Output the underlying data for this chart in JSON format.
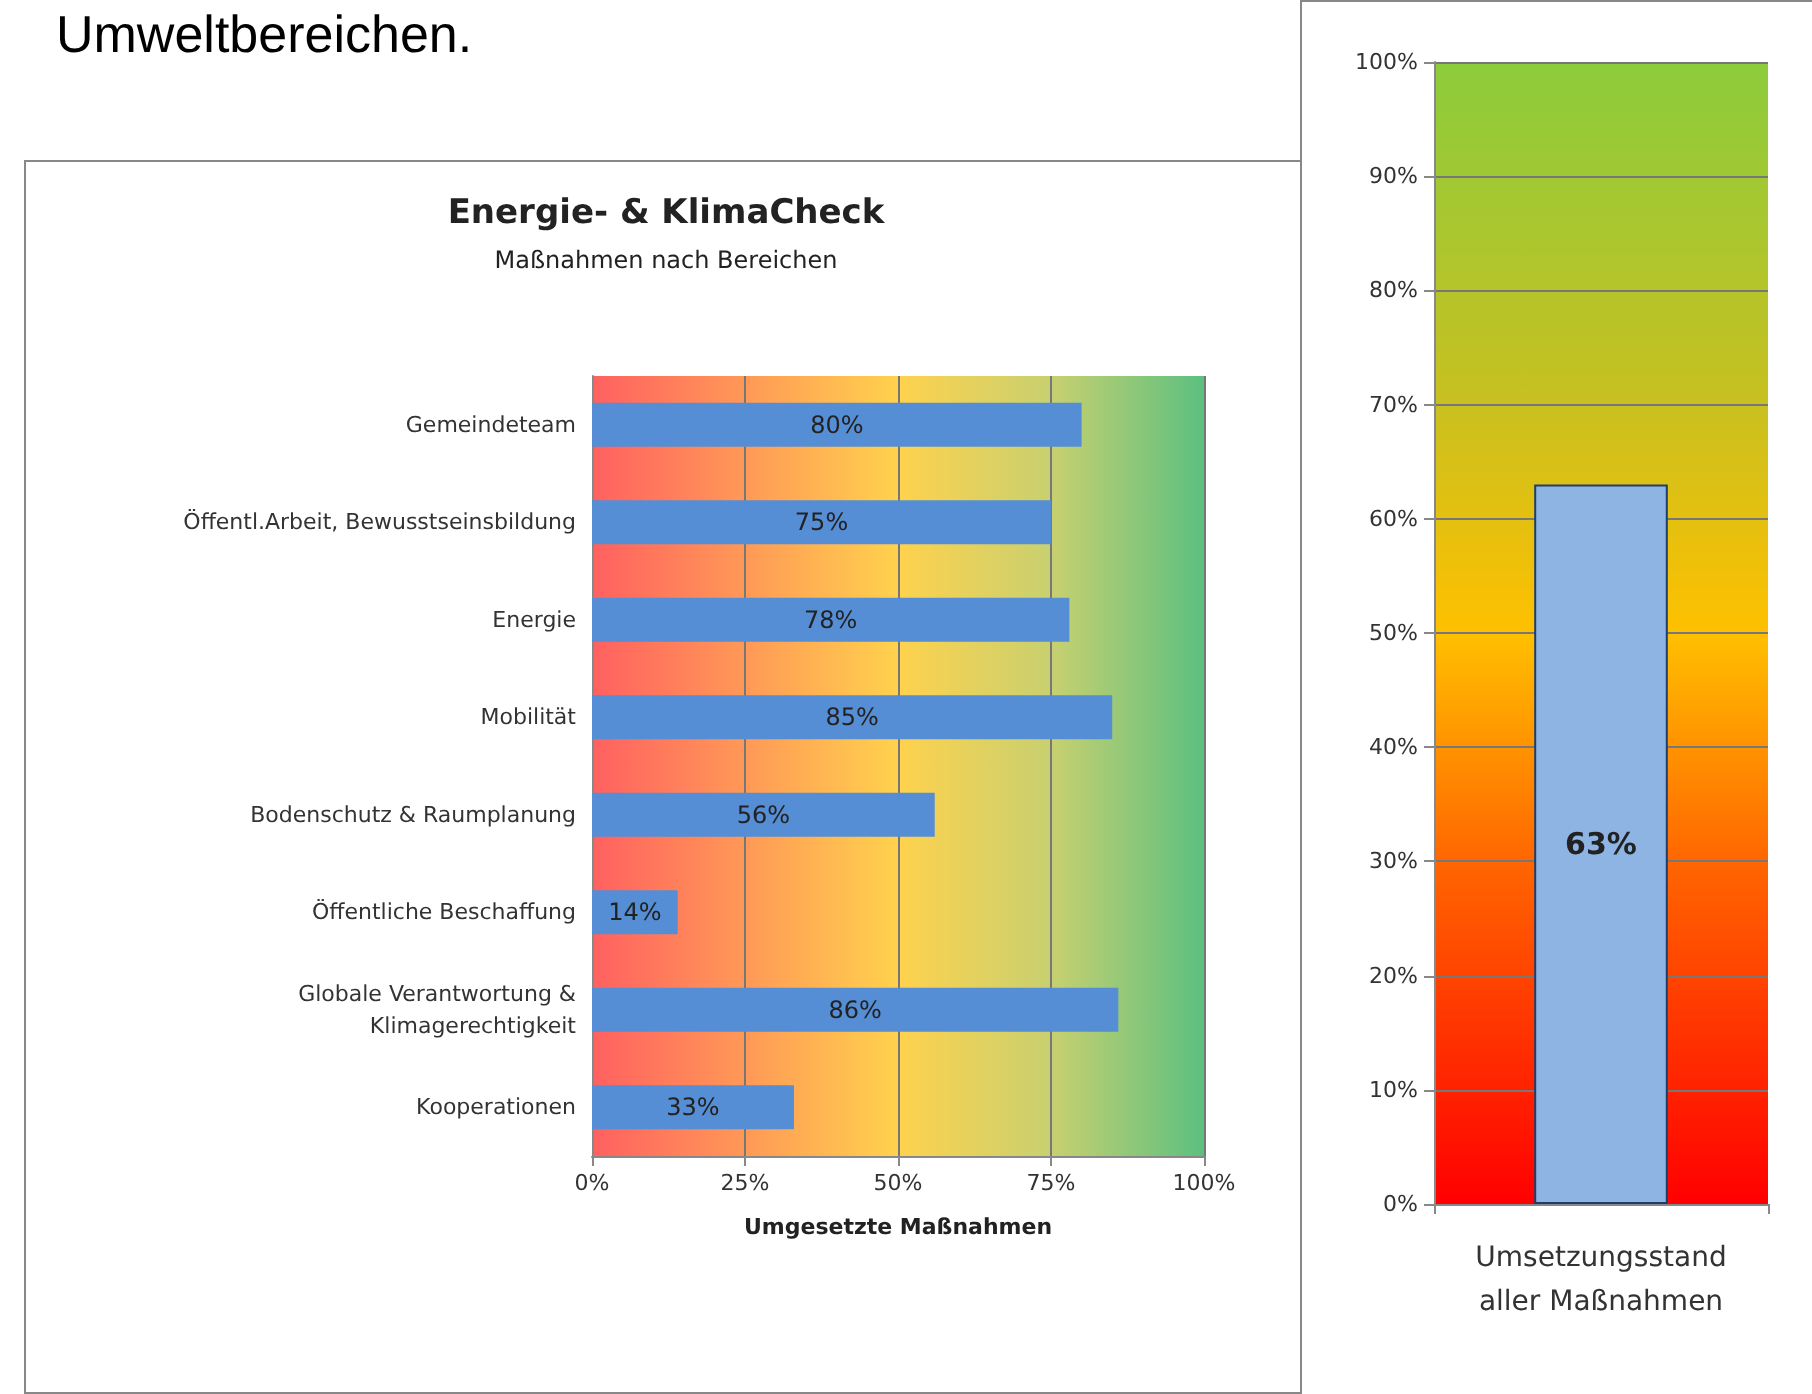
{
  "chart_data": [
    {
      "type": "bar",
      "title": "Energie- & KlimaCheck",
      "subtitle": "Maßnahmen nach Bereichen",
      "xlabel": "Umgesetzte Maßnahmen",
      "orientation": "horizontal",
      "annotations": [
        "Umweltbereichen."
      ],
      "categories": [
        "Gemeindeteam",
        "Öffentl.Arbeit, Bewusstseinsbildung",
        "Energie",
        "Mobilität",
        "Bodenschutz & Raumplanung",
        "Öffentliche Beschaffung",
        "Globale Verantwortung &\nKlimagerechtigkeit",
        "Kooperationen"
      ],
      "values": [
        80,
        75,
        78,
        85,
        56,
        14,
        86,
        33
      ],
      "value_labels": [
        "80%",
        "75%",
        "78%",
        "85%",
        "56%",
        "14%",
        "86%",
        "33%"
      ],
      "color": "#558ed5",
      "xlim": [
        0,
        100
      ],
      "xticks": [
        {
          "value": 0,
          "label": "0%"
        },
        {
          "value": 25,
          "label": "25%"
        },
        {
          "value": 50,
          "label": "50%"
        },
        {
          "value": 75,
          "label": "75%"
        },
        {
          "value": 100,
          "label": "100%"
        }
      ],
      "grid": "x"
    },
    {
      "type": "bar",
      "categories": [
        "Umsetzungsstand\naller Maßnahmen"
      ],
      "values": [
        63
      ],
      "value_labels": [
        "63%"
      ],
      "color": "#8db4e2",
      "ylim": [
        0,
        100
      ],
      "yticks": [
        {
          "value": 0,
          "label": "0%"
        },
        {
          "value": 10,
          "label": "10%"
        },
        {
          "value": 20,
          "label": "20%"
        },
        {
          "value": 30,
          "label": "30%"
        },
        {
          "value": 40,
          "label": "40%"
        },
        {
          "value": 50,
          "label": "50%"
        },
        {
          "value": 60,
          "label": "60%"
        },
        {
          "value": 70,
          "label": "70%"
        },
        {
          "value": 80,
          "label": "80%"
        },
        {
          "value": 90,
          "label": "90%"
        },
        {
          "value": 100,
          "label": "100%"
        }
      ],
      "grid": "y"
    }
  ]
}
